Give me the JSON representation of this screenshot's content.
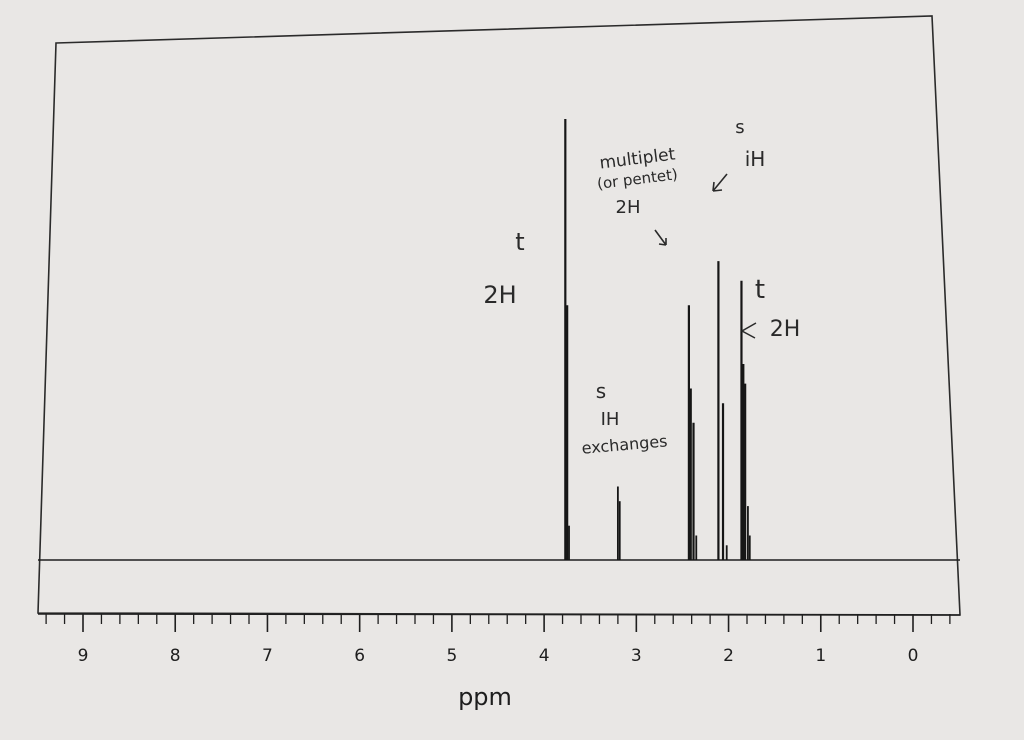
{
  "chart_data": {
    "type": "line",
    "title": "",
    "xlabel": "ppm",
    "ylabel": "",
    "xlim": [
      9.7,
      -0.5
    ],
    "x_reversed": true,
    "tick_labels": [
      "9",
      "8",
      "7",
      "6",
      "5",
      "4",
      "3",
      "2",
      "1",
      "0"
    ],
    "ticks": [
      9,
      8,
      7,
      6,
      5,
      4,
      3,
      2,
      1,
      0
    ],
    "grid": false,
    "series": [
      {
        "peaks": [
          {
            "ppm": 3.77,
            "height": 0.9
          },
          {
            "ppm": 3.75,
            "height": 0.52
          },
          {
            "ppm": 3.73,
            "height": 0.07
          },
          {
            "ppm": 3.2,
            "height": 0.15
          },
          {
            "ppm": 3.18,
            "height": 0.12
          },
          {
            "ppm": 2.43,
            "height": 0.52
          },
          {
            "ppm": 2.41,
            "height": 0.35
          },
          {
            "ppm": 2.38,
            "height": 0.28
          },
          {
            "ppm": 2.35,
            "height": 0.05
          },
          {
            "ppm": 2.11,
            "height": 0.61
          },
          {
            "ppm": 2.06,
            "height": 0.32
          },
          {
            "ppm": 2.02,
            "height": 0.03
          },
          {
            "ppm": 1.86,
            "height": 0.57
          },
          {
            "ppm": 1.84,
            "height": 0.4
          },
          {
            "ppm": 1.82,
            "height": 0.36
          },
          {
            "ppm": 1.79,
            "height": 0.11
          },
          {
            "ppm": 1.77,
            "height": 0.05
          }
        ]
      }
    ],
    "annotations": [
      {
        "text": "t",
        "ppm": 3.95
      },
      {
        "text": "2H",
        "ppm": 4.02
      },
      {
        "text": "multiplet",
        "ppm": 2.8
      },
      {
        "text": "(or pentet)",
        "ppm": 2.8
      },
      {
        "text": "2H",
        "ppm": 2.75
      },
      {
        "text": "s",
        "ppm": 2.0
      },
      {
        "text": "iH",
        "ppm": 1.95
      },
      {
        "text": "t",
        "ppm": 1.64
      },
      {
        "text": "2H",
        "ppm": 1.55
      },
      {
        "text": "s",
        "ppm": 3.21
      },
      {
        "text": "IH",
        "ppm": 3.24
      },
      {
        "text": "exchanges",
        "ppm": 3.24
      }
    ]
  }
}
